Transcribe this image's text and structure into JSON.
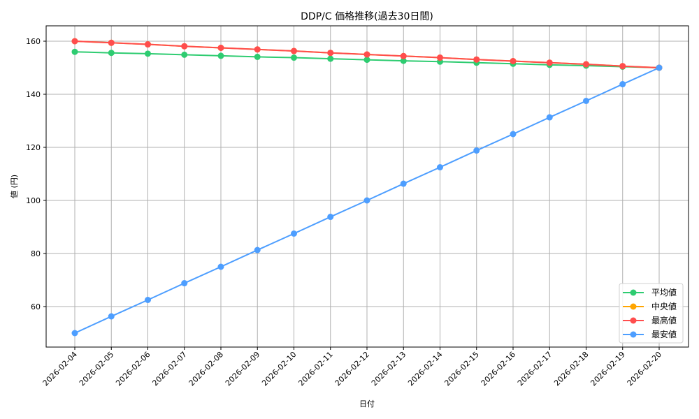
{
  "chart_data": {
    "type": "line",
    "title": "DDP/C 価格推移(過去30日間)",
    "xlabel": "日付",
    "ylabel": "値 (円)",
    "ylim": [
      45,
      165
    ],
    "yticks": [
      60,
      80,
      100,
      120,
      140,
      160
    ],
    "grid": true,
    "legend_position": "lower right",
    "categories": [
      "2026-02-04",
      "2026-02-05",
      "2026-02-06",
      "2026-02-07",
      "2026-02-08",
      "2026-02-09",
      "2026-02-10",
      "2026-02-11",
      "2026-02-12",
      "2026-02-13",
      "2026-02-14",
      "2026-02-15",
      "2026-02-16",
      "2026-02-17",
      "2026-02-18",
      "2026-02-19",
      "2026-02-20"
    ],
    "series": [
      {
        "name": "平均値",
        "color": "#2ecc71",
        "values": [
          156.0,
          155.6,
          155.3,
          154.9,
          154.5,
          154.1,
          153.8,
          153.4,
          153.0,
          152.6,
          152.3,
          151.9,
          151.5,
          151.1,
          150.8,
          150.4,
          150.0
        ]
      },
      {
        "name": "中央値",
        "color": "#ffa500",
        "values": [
          160.0,
          159.4,
          158.8,
          158.1,
          157.5,
          156.9,
          156.3,
          155.6,
          155.0,
          154.4,
          153.8,
          153.1,
          152.5,
          151.9,
          151.3,
          150.6,
          150.0
        ]
      },
      {
        "name": "最高値",
        "color": "#ff4d4d",
        "values": [
          160.0,
          159.4,
          158.8,
          158.1,
          157.5,
          156.9,
          156.3,
          155.6,
          155.0,
          154.4,
          153.8,
          153.1,
          152.5,
          151.9,
          151.3,
          150.6,
          150.0
        ]
      },
      {
        "name": "最安値",
        "color": "#4d9eff",
        "values": [
          50.0,
          56.3,
          62.5,
          68.8,
          75.0,
          81.3,
          87.5,
          93.8,
          100.0,
          106.3,
          112.5,
          118.8,
          125.0,
          131.3,
          137.5,
          143.8,
          150.0
        ]
      }
    ]
  }
}
